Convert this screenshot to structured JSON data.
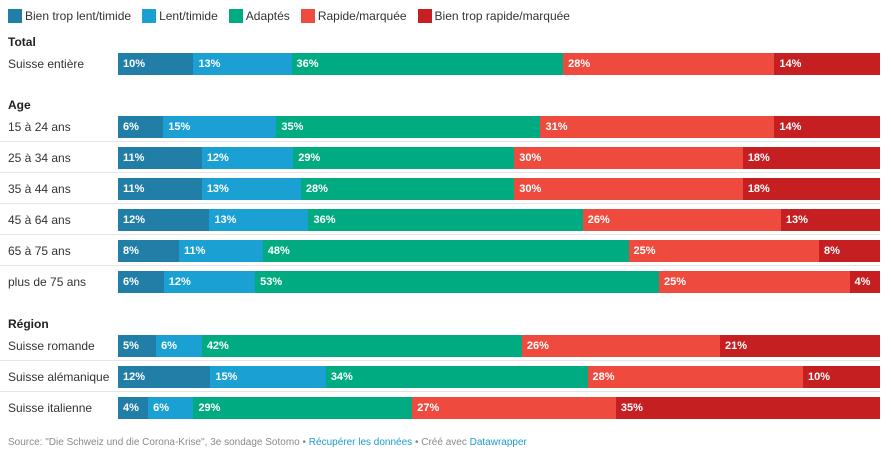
{
  "chart_data": {
    "type": "bar",
    "orientation": "horizontal",
    "stacked": true,
    "normalized": true,
    "xlim": [
      0,
      100
    ],
    "unit": "%",
    "series": [
      {
        "name": "Bien trop lent/timide",
        "color": "#217ea6"
      },
      {
        "name": "Lent/timide",
        "color": "#1aa0d2"
      },
      {
        "name": "Adaptés",
        "color": "#00ab81"
      },
      {
        "name": "Rapide/marquée",
        "color": "#ee4b3e"
      },
      {
        "name": "Bien trop rapide/marquée",
        "color": "#c51f22"
      }
    ],
    "groups": [
      {
        "title": "Total",
        "rows": [
          {
            "label": "Suisse entière",
            "values": [
              10,
              13,
              36,
              28,
              14
            ]
          }
        ]
      },
      {
        "title": "Age",
        "rows": [
          {
            "label": "15 à 24 ans",
            "values": [
              6,
              15,
              35,
              31,
              14
            ]
          },
          {
            "label": "25 à 34 ans",
            "values": [
              11,
              12,
              29,
              30,
              18
            ]
          },
          {
            "label": "35 à 44 ans",
            "values": [
              11,
              13,
              28,
              30,
              18
            ]
          },
          {
            "label": "45 à 64 ans",
            "values": [
              12,
              13,
              36,
              26,
              13
            ]
          },
          {
            "label": "65 à 75 ans",
            "values": [
              8,
              11,
              48,
              25,
              8
            ]
          },
          {
            "label": "plus de 75 ans",
            "values": [
              6,
              12,
              53,
              25,
              4
            ]
          }
        ]
      },
      {
        "title": "Région",
        "rows": [
          {
            "label": "Suisse romande",
            "values": [
              5,
              6,
              42,
              26,
              21
            ]
          },
          {
            "label": "Suisse alémanique",
            "values": [
              12,
              15,
              34,
              28,
              10
            ]
          },
          {
            "label": "Suisse italienne",
            "values": [
              4,
              6,
              29,
              27,
              35
            ]
          }
        ]
      }
    ]
  },
  "footer": {
    "source": "Source: \"Die Schweiz und die Corona-Krise\", 3e sondage Sotomo",
    "separator": " • ",
    "data_link": "Récupérer les données",
    "created_with": "Créé avec ",
    "tool_link": "Datawrapper"
  }
}
